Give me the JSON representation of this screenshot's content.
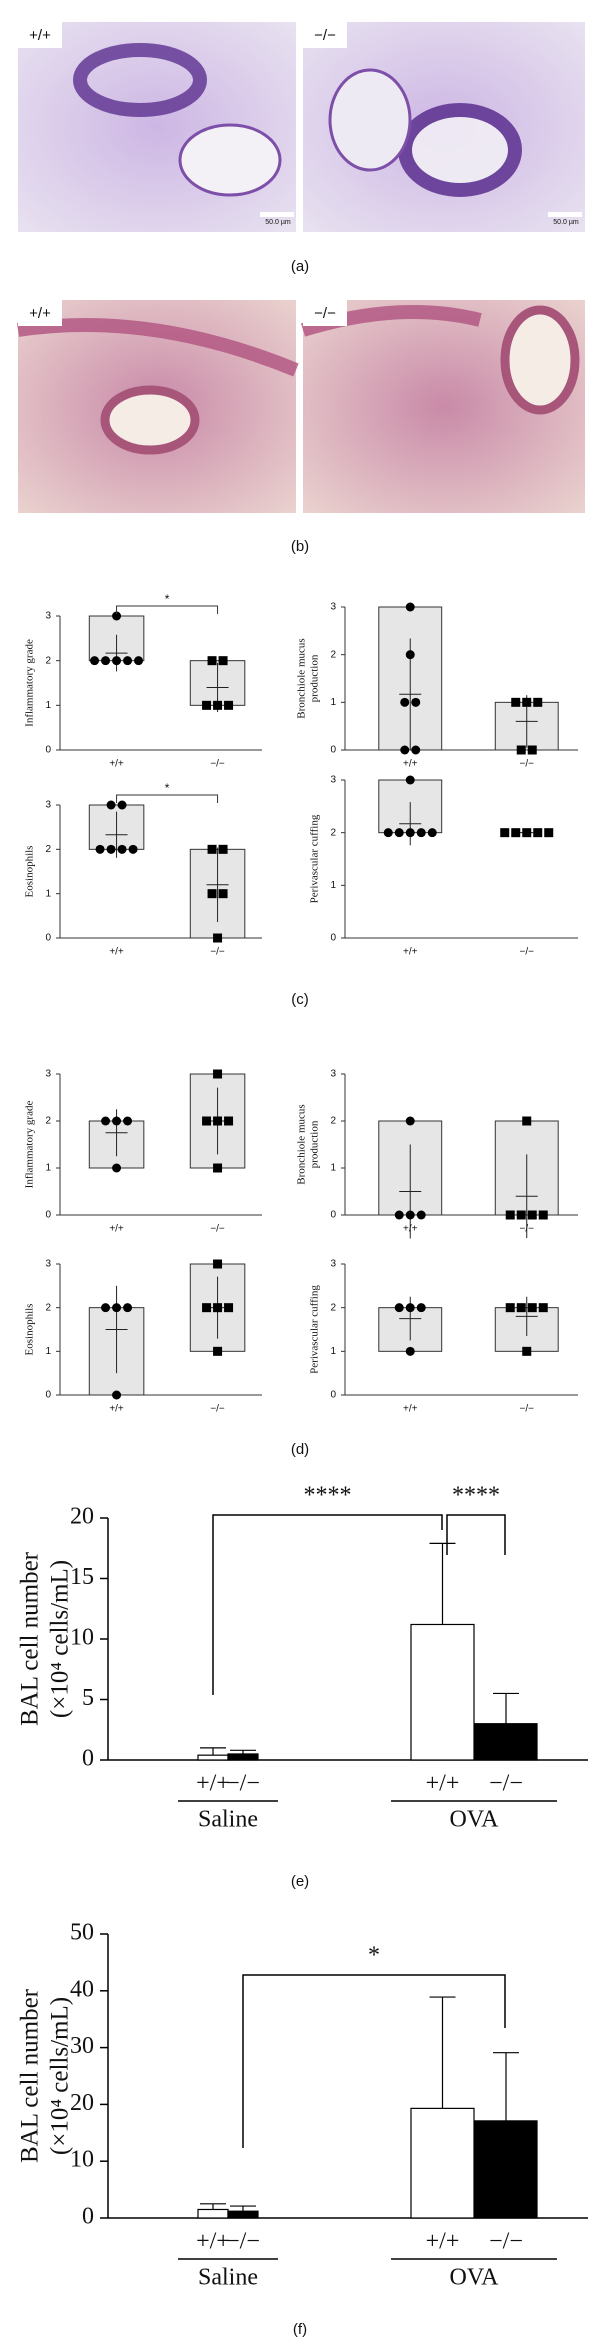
{
  "panel_labels": [
    "(a)",
    "(b)",
    "(c)",
    "(d)",
    "(e)",
    "(f)"
  ],
  "micrographs": [
    {
      "left_label": "+/+",
      "right_label": "−/−",
      "scale_bar": "50.0 µm"
    },
    {
      "left_label": "+/+",
      "right_label": "−/−"
    }
  ],
  "chart_data": [
    {
      "type": "dotbox",
      "ylabel": [
        "Inflammatory grade"
      ],
      "categories": [
        "+/+",
        "−/−"
      ],
      "ylim": [
        0,
        3
      ],
      "yticks": [
        0,
        1,
        2,
        3
      ],
      "significance": "*",
      "groups": [
        {
          "marker": "circle",
          "points": [
            3,
            2,
            2,
            2,
            2,
            2
          ],
          "range": [
            2,
            3
          ],
          "mean": 2.17,
          "sd": 0.41
        },
        {
          "marker": "square",
          "points": [
            2,
            2,
            1,
            1,
            1
          ],
          "range": [
            1,
            2
          ],
          "mean": 1.4,
          "sd": 0.55
        }
      ]
    },
    {
      "type": "dotbox",
      "ylabel": [
        "Bronchiole mucus",
        "production"
      ],
      "categories": [
        "+/+",
        "−/−"
      ],
      "ylim": [
        0,
        3
      ],
      "yticks": [
        0,
        1,
        2,
        3
      ],
      "groups": [
        {
          "marker": "circle",
          "points": [
            3,
            2,
            1,
            1,
            0,
            0
          ],
          "range": [
            0,
            3
          ],
          "mean": 1.17,
          "sd": 1.17
        },
        {
          "marker": "square",
          "points": [
            1,
            1,
            1,
            0,
            0
          ],
          "range": [
            0,
            1
          ],
          "mean": 0.6,
          "sd": 0.55
        }
      ]
    },
    {
      "type": "dotbox",
      "ylabel": [
        "Eosinophils"
      ],
      "categories": [
        "+/+",
        "−/−"
      ],
      "ylim": [
        0,
        3
      ],
      "yticks": [
        0,
        1,
        2,
        3
      ],
      "significance": "*",
      "groups": [
        {
          "marker": "circle",
          "points": [
            3,
            3,
            2,
            2,
            2,
            2
          ],
          "range": [
            2,
            3
          ],
          "mean": 2.33,
          "sd": 0.52
        },
        {
          "marker": "square",
          "points": [
            2,
            2,
            1,
            1,
            0
          ],
          "range": [
            0,
            2
          ],
          "mean": 1.2,
          "sd": 0.84
        }
      ]
    },
    {
      "type": "dotbox",
      "ylabel": [
        "Perivascular cuffing"
      ],
      "categories": [
        "+/+",
        "−/−"
      ],
      "ylim": [
        0,
        3
      ],
      "yticks": [
        0,
        1,
        2,
        3
      ],
      "groups": [
        {
          "marker": "circle",
          "points": [
            3,
            2,
            2,
            2,
            2,
            2
          ],
          "range": [
            2,
            3
          ],
          "mean": 2.17,
          "sd": 0.41
        },
        {
          "marker": "square",
          "points": [
            2,
            2,
            2,
            2,
            2
          ],
          "range": [
            2,
            2
          ],
          "mean": 2,
          "sd": 0
        }
      ]
    },
    {
      "type": "dotbox",
      "ylabel": [
        "Inflammatory grade"
      ],
      "categories": [
        "+/+",
        "−/−"
      ],
      "ylim": [
        0,
        3
      ],
      "yticks": [
        0,
        1,
        2,
        3
      ],
      "groups": [
        {
          "marker": "circle",
          "points": [
            2,
            2,
            2,
            1
          ],
          "range": [
            1,
            2
          ],
          "mean": 1.75,
          "sd": 0.5
        },
        {
          "marker": "square",
          "points": [
            3,
            2,
            2,
            2,
            1
          ],
          "range": [
            1,
            3
          ],
          "mean": 2,
          "sd": 0.71
        }
      ]
    },
    {
      "type": "dotbox",
      "ylabel": [
        "Bronchiole mucus",
        "production"
      ],
      "categories": [
        "+/+",
        "−/−"
      ],
      "ylim": [
        0,
        3
      ],
      "yticks": [
        0,
        1,
        2,
        3
      ],
      "groups": [
        {
          "marker": "circle",
          "points": [
            2,
            0,
            0,
            0
          ],
          "range": [
            0,
            2
          ],
          "mean": 0.5,
          "sd": 1
        },
        {
          "marker": "square",
          "points": [
            2,
            0,
            0,
            0,
            0
          ],
          "range": [
            0,
            2
          ],
          "mean": 0.4,
          "sd": 0.89
        }
      ]
    },
    {
      "type": "dotbox",
      "ylabel": [
        "Eosinophils"
      ],
      "categories": [
        "+/+",
        "−/−"
      ],
      "ylim": [
        0,
        3
      ],
      "yticks": [
        0,
        1,
        2,
        3
      ],
      "groups": [
        {
          "marker": "circle",
          "points": [
            2,
            2,
            2,
            0
          ],
          "range": [
            0,
            2
          ],
          "mean": 1.5,
          "sd": 1
        },
        {
          "marker": "square",
          "points": [
            3,
            2,
            2,
            2,
            1
          ],
          "range": [
            1,
            3
          ],
          "mean": 2,
          "sd": 0.71
        }
      ]
    },
    {
      "type": "dotbox",
      "ylabel": [
        "Perivascular cuffing"
      ],
      "categories": [
        "+/+",
        "−/−"
      ],
      "ylim": [
        0,
        3
      ],
      "yticks": [
        0,
        1,
        2,
        3
      ],
      "groups": [
        {
          "marker": "circle",
          "points": [
            2,
            2,
            2,
            1
          ],
          "range": [
            1,
            2
          ],
          "mean": 1.75,
          "sd": 0.5
        },
        {
          "marker": "square",
          "points": [
            2,
            2,
            2,
            2,
            1
          ],
          "range": [
            1,
            2
          ],
          "mean": 1.8,
          "sd": 0.45
        }
      ]
    },
    {
      "type": "bar",
      "ylabel": [
        "BAL cell number",
        "(×10⁴ cells/mL)"
      ],
      "categories": [
        "Saline",
        "OVA"
      ],
      "ylim": [
        0,
        20
      ],
      "yticks": [
        0,
        5,
        10,
        15,
        20
      ],
      "series": [
        {
          "name": "+/+",
          "color": "#ffffff",
          "values": [
            0.4,
            11.2
          ],
          "errors": [
            0.6,
            6.7
          ]
        },
        {
          "name": "−/−",
          "color": "#000000",
          "values": [
            0.5,
            3.0
          ],
          "errors": [
            0.3,
            2.5
          ]
        }
      ],
      "annotations": [
        "****",
        "****"
      ]
    },
    {
      "type": "bar",
      "ylabel": [
        "BAL cell number",
        "(×10⁴ cells/mL)"
      ],
      "categories": [
        "Saline",
        "OVA"
      ],
      "ylim": [
        0,
        50
      ],
      "yticks": [
        0,
        10,
        20,
        30,
        40,
        50
      ],
      "series": [
        {
          "name": "+/+",
          "color": "#ffffff",
          "values": [
            1.5,
            19.3
          ],
          "errors": [
            1.0,
            19.6
          ]
        },
        {
          "name": "−/−",
          "color": "#000000",
          "values": [
            1.2,
            17.1
          ],
          "errors": [
            0.9,
            12.0
          ]
        }
      ],
      "annotations": [
        "*"
      ]
    }
  ]
}
